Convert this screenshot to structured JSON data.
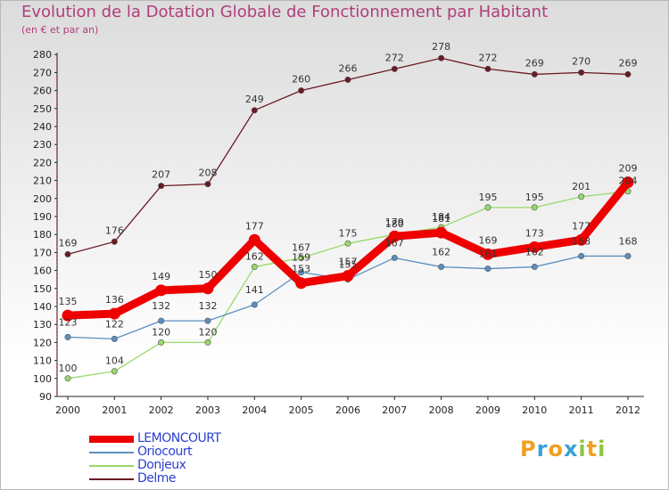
{
  "chart_data": {
    "type": "line",
    "title": "Evolution de la Dotation Globale de Fonctionnement par Habitant",
    "subtitle": "(en € et par an)",
    "x": [
      "2000",
      "2001",
      "2002",
      "2003",
      "2004",
      "2005",
      "2006",
      "2007",
      "2008",
      "2009",
      "2010",
      "2011",
      "2012"
    ],
    "ylim": [
      90,
      280
    ],
    "yticks": [
      90,
      100,
      110,
      120,
      130,
      140,
      150,
      160,
      170,
      180,
      190,
      200,
      210,
      220,
      230,
      240,
      250,
      260,
      270,
      280
    ],
    "grid": false,
    "legend_position": "bottom-left",
    "series": [
      {
        "name": "Delme",
        "color": "#6b1a24",
        "values": [
          169,
          176,
          207,
          208,
          249,
          260,
          266,
          272,
          278,
          272,
          269,
          270,
          269
        ]
      },
      {
        "name": "Donjeux",
        "color": "#99d96a",
        "values": [
          100,
          104,
          120,
          120,
          162,
          167,
          175,
          180,
          184,
          195,
          195,
          201,
          204
        ]
      },
      {
        "name": "Oriocourt",
        "color": "#5b8fc0",
        "values": [
          123,
          122,
          132,
          132,
          141,
          159,
          155,
          167,
          162,
          161,
          162,
          168,
          168
        ]
      },
      {
        "name": "LEMONCOURT",
        "color": "#ee0000",
        "values": [
          135,
          136,
          149,
          150,
          177,
          153,
          157,
          179,
          181,
          169,
          173,
          177,
          209
        ]
      }
    ],
    "legend": [
      "LEMONCOURT",
      "Oriocourt",
      "Donjeux",
      "Delme"
    ]
  },
  "logo": {
    "letters": [
      "P",
      "r",
      "o",
      "x",
      "i",
      "t",
      "i"
    ],
    "colors": [
      "#f0a020",
      "#3aa0d8",
      "#f0a020",
      "#3aa0d8",
      "#8cc63f",
      "#f0a020",
      "#8cc63f"
    ]
  }
}
